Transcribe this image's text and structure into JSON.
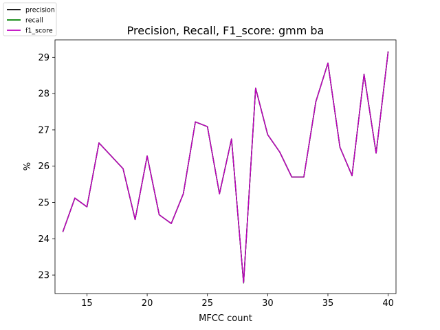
{
  "chart_data": {
    "type": "line",
    "title": "Precision, Recall, F1_score: gmm ba",
    "xlabel": "MFCC count",
    "ylabel": "%",
    "xlim": [
      12.35,
      40.65
    ],
    "ylim": [
      22.49,
      29.48
    ],
    "xticks": [
      15,
      20,
      25,
      30,
      35,
      40
    ],
    "yticks": [
      23,
      24,
      25,
      26,
      27,
      28,
      29
    ],
    "legend_position": "top-left",
    "x": [
      13,
      14,
      15,
      16,
      18,
      19,
      20,
      21,
      22,
      23,
      24,
      25,
      26,
      27,
      28,
      29,
      30,
      31,
      32,
      33,
      34,
      35,
      36,
      37,
      38,
      39,
      40
    ],
    "series": [
      {
        "name": "precision",
        "color": "#000000",
        "values": [
          24.19,
          25.12,
          24.88,
          26.64,
          25.93,
          24.53,
          26.28,
          24.66,
          24.42,
          25.24,
          27.22,
          27.09,
          25.24,
          26.75,
          22.79,
          28.15,
          26.87,
          26.39,
          25.7,
          25.7,
          27.78,
          28.84,
          26.52,
          25.74,
          28.53,
          26.36,
          29.16
        ]
      },
      {
        "name": "recall",
        "color": "#008000",
        "values": [
          24.19,
          25.12,
          24.88,
          26.64,
          25.93,
          24.53,
          26.28,
          24.66,
          24.42,
          25.24,
          27.22,
          27.09,
          25.24,
          26.75,
          22.78,
          28.15,
          26.87,
          26.39,
          25.7,
          25.7,
          27.78,
          28.84,
          26.52,
          25.74,
          28.53,
          26.36,
          29.16
        ]
      },
      {
        "name": "f1_score",
        "color": "#bf00bf",
        "values": [
          24.19,
          25.12,
          24.88,
          26.64,
          25.93,
          24.53,
          26.28,
          24.66,
          24.42,
          25.24,
          27.22,
          27.09,
          25.24,
          26.75,
          22.79,
          28.15,
          26.87,
          26.39,
          25.7,
          25.7,
          27.78,
          28.84,
          26.52,
          25.74,
          28.53,
          26.36,
          29.16
        ]
      }
    ]
  }
}
